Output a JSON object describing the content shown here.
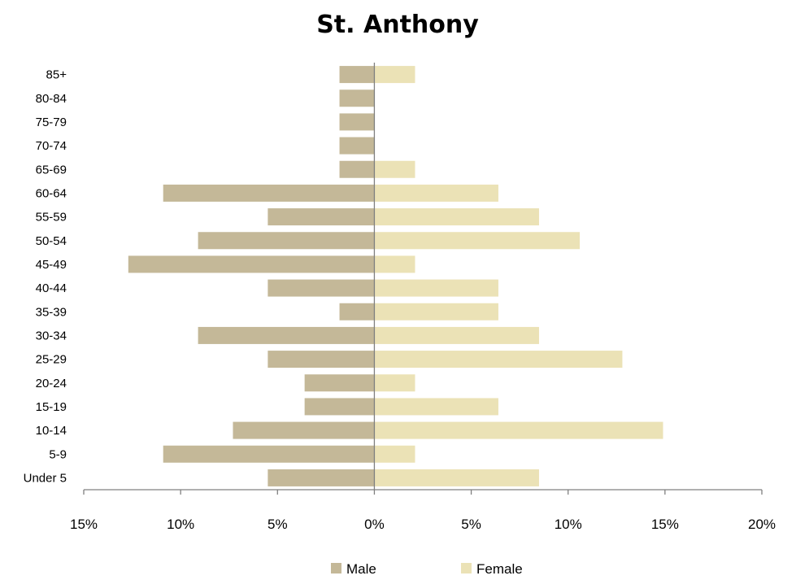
{
  "chart_data": {
    "type": "bar",
    "orientation": "horizontal",
    "title": "St. Anthony",
    "categories": [
      "Under 5",
      "5-9",
      "10-14",
      "15-19",
      "20-24",
      "25-29",
      "30-34",
      "35-39",
      "40-44",
      "45-49",
      "50-54",
      "55-59",
      "60-64",
      "65-69",
      "70-74",
      "75-79",
      "80-84",
      "85+"
    ],
    "series": [
      {
        "name": "Male",
        "color": "#c4b898",
        "values": [
          5.5,
          10.9,
          7.3,
          3.6,
          3.6,
          5.5,
          9.1,
          1.8,
          5.5,
          12.7,
          9.1,
          5.5,
          10.9,
          1.8,
          1.8,
          1.8,
          1.8,
          1.8
        ]
      },
      {
        "name": "Female",
        "color": "#ebe2b6",
        "values": [
          8.5,
          2.1,
          14.9,
          6.4,
          2.1,
          12.8,
          8.5,
          6.4,
          6.4,
          2.1,
          10.6,
          8.5,
          6.4,
          2.1,
          0,
          0,
          0,
          2.1
        ]
      }
    ],
    "xlim": [
      -15,
      20
    ],
    "xticks": [
      -15,
      -10,
      -5,
      0,
      5,
      10,
      15,
      20
    ],
    "xtick_labels": [
      "15%",
      "10%",
      "5%",
      "0%",
      "5%",
      "10%",
      "15%",
      "20%"
    ],
    "male_direction": "left",
    "legend_position": "bottom",
    "grid": false
  }
}
